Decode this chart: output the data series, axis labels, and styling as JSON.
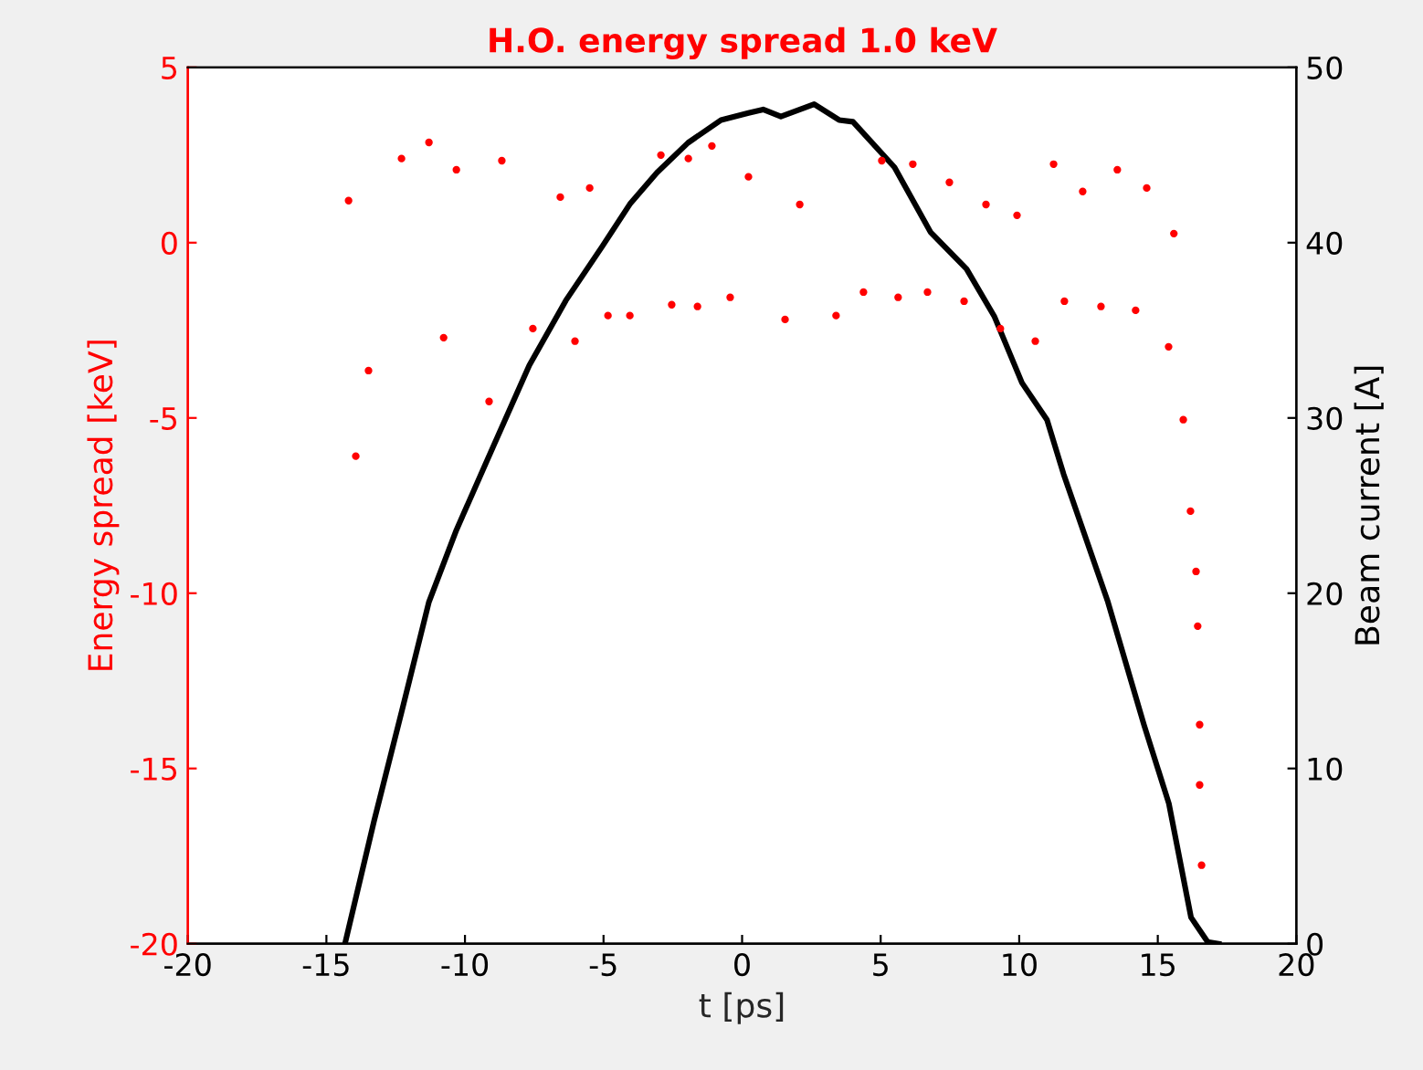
{
  "chart_data": {
    "type": "scatter",
    "title": "H.O. energy spread 1.0 keV",
    "xlabel": "t [ps]",
    "ylabel": "Energy spread [keV]",
    "y2label": "Beam current [A]",
    "xlim": [
      -20,
      20
    ],
    "xticks": [
      -20,
      -15,
      -10,
      -5,
      0,
      5,
      10,
      15,
      20
    ],
    "ylim": [
      -20,
      5
    ],
    "yticks": [
      -20,
      -15,
      -10,
      -5,
      0,
      5
    ],
    "y2lim": [
      0,
      50
    ],
    "y2ticks": [
      0,
      10,
      20,
      30,
      40,
      50
    ],
    "grid": false,
    "legend": false,
    "series": [
      {
        "color": "#ff0000",
        "marker": "circle",
        "x": [
          -14.2,
          -13.94,
          -13.48,
          -12.29,
          -11.3,
          -10.77,
          -10.31,
          -9.13,
          -8.67,
          -7.55,
          -6.56,
          -6.03,
          -5.5,
          -4.84,
          -4.05,
          -2.93,
          -2.54,
          -1.94,
          -1.61,
          -1.09,
          -0.43,
          0.23,
          1.55,
          2.08,
          3.39,
          4.38,
          5.04,
          5.63,
          6.16,
          6.69,
          7.48,
          8.01,
          8.8,
          9.32,
          9.92,
          10.58,
          11.24,
          11.63,
          12.29,
          12.95,
          13.54,
          14.2,
          14.6,
          15.39,
          15.58,
          15.92,
          16.18,
          16.38,
          16.44,
          16.51,
          16.51,
          16.58
        ],
        "values": [
          1.2,
          -6.09,
          -3.65,
          2.4,
          2.86,
          -2.71,
          2.08,
          -4.53,
          2.34,
          -2.45,
          1.3,
          -2.81,
          1.56,
          -2.08,
          -2.08,
          2.5,
          -1.77,
          2.4,
          -1.82,
          2.76,
          -1.56,
          1.88,
          -2.19,
          1.09,
          -2.08,
          -1.41,
          2.34,
          -1.56,
          2.24,
          -1.41,
          1.72,
          -1.67,
          1.09,
          -2.45,
          0.78,
          -2.81,
          2.24,
          -1.67,
          1.46,
          -1.82,
          2.08,
          -1.93,
          1.56,
          -2.97,
          0.26,
          -5.05,
          -7.66,
          -9.38,
          -10.94,
          -13.75,
          -15.47,
          -17.76
        ]
      },
      {
        "type": "line",
        "axis": "y2",
        "color": "#000000",
        "marker": "none",
        "line_style": "solid",
        "x": [
          -14.33,
          -13.28,
          -12.29,
          -11.3,
          -10.31,
          -9.0,
          -7.68,
          -6.36,
          -5.04,
          -4.05,
          -3.07,
          -1.95,
          -0.76,
          0.23,
          0.76,
          1.4,
          2.6,
          3.5,
          4.0,
          5.5,
          6.8,
          8.1,
          9.1,
          10.1,
          11.0,
          11.6,
          13.2,
          14.5,
          15.4,
          16.2,
          16.8,
          17.2
        ],
        "values": [
          0,
          7.0,
          13.2,
          19.5,
          23.6,
          28.3,
          33.0,
          36.7,
          39.8,
          42.2,
          44.0,
          45.7,
          47.0,
          47.4,
          47.6,
          47.2,
          47.9,
          47.0,
          46.9,
          44.3,
          40.6,
          38.5,
          35.8,
          32.0,
          29.9,
          26.8,
          19.5,
          12.5,
          8.0,
          1.5,
          0.1,
          0
        ]
      }
    ]
  }
}
